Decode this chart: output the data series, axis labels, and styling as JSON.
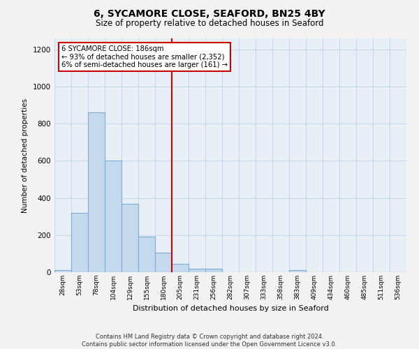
{
  "title": "6, SYCAMORE CLOSE, SEAFORD, BN25 4BY",
  "subtitle": "Size of property relative to detached houses in Seaford",
  "xlabel": "Distribution of detached houses by size in Seaford",
  "ylabel": "Number of detached properties",
  "bar_color": "#c5d9ee",
  "bar_edge_color": "#7aadd4",
  "vline_color": "#cc0000",
  "bin_labels": [
    "28sqm",
    "53sqm",
    "78sqm",
    "104sqm",
    "129sqm",
    "155sqm",
    "180sqm",
    "205sqm",
    "231sqm",
    "256sqm",
    "282sqm",
    "307sqm",
    "333sqm",
    "358sqm",
    "383sqm",
    "409sqm",
    "434sqm",
    "460sqm",
    "485sqm",
    "511sqm",
    "536sqm"
  ],
  "bar_heights": [
    10,
    320,
    860,
    600,
    370,
    190,
    105,
    45,
    20,
    18,
    0,
    0,
    0,
    0,
    10,
    0,
    0,
    0,
    0,
    0,
    0
  ],
  "ylim": [
    0,
    1260
  ],
  "yticks": [
    0,
    200,
    400,
    600,
    800,
    1000,
    1200
  ],
  "annotation_line1": "6 SYCAMORE CLOSE: 186sqm",
  "annotation_line2": "← 93% of detached houses are smaller (2,352)",
  "annotation_line3": "6% of semi-detached houses are larger (161) →",
  "footer_text": "Contains HM Land Registry data © Crown copyright and database right 2024.\nContains public sector information licensed under the Open Government Licence v3.0.",
  "background_color": "#f2f2f2",
  "plot_background_color": "#e8eef5",
  "grid_color": "#c8d8e8",
  "vline_bin_index": 6
}
